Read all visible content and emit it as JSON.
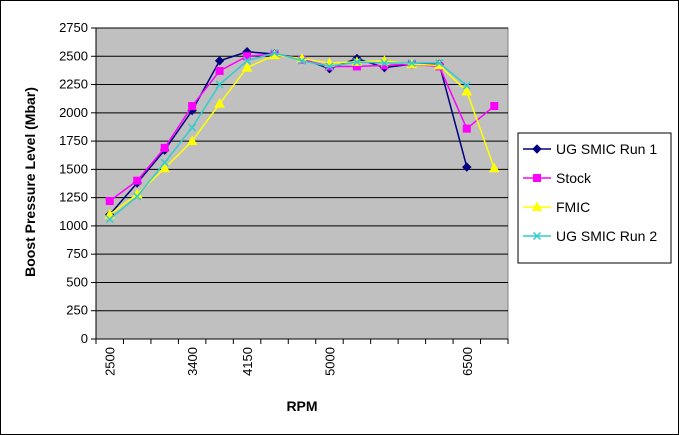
{
  "chart_data": {
    "type": "line",
    "title": "",
    "xlabel": "RPM",
    "ylabel": "Boost Pressure Level (Mbar)",
    "ylim": [
      0,
      2750
    ],
    "y_ticks": [
      "0",
      "250",
      "500",
      "750",
      "1000",
      "1250",
      "1500",
      "1750",
      "2000",
      "2250",
      "2500",
      "2750"
    ],
    "x_categories": [
      "2500",
      "",
      "",
      "3400",
      "",
      "4150",
      "",
      "",
      "5000",
      "",
      "",
      "",
      "",
      "6500",
      ""
    ],
    "x_tick_labels": [
      "2500",
      "3400",
      "4150",
      "5000",
      "6500"
    ],
    "grid": "horizontal",
    "legend_position": "right",
    "series": [
      {
        "name": "UG SMIC Run 1",
        "color": "#000080",
        "marker": "diamond",
        "values": [
          1100,
          1380,
          1670,
          2020,
          2460,
          2540,
          2520,
          2480,
          2390,
          2480,
          2400,
          2430,
          2430,
          1520,
          null
        ]
      },
      {
        "name": "Stock",
        "color": "#ff00ff",
        "marker": "square",
        "values": [
          1220,
          1400,
          1690,
          2060,
          2370,
          2500,
          2520,
          2470,
          2410,
          2410,
          2420,
          2430,
          2410,
          1860,
          2060
        ]
      },
      {
        "name": "FMIC",
        "color": "#ffff00",
        "marker": "triangle",
        "values": [
          1100,
          1280,
          1510,
          1750,
          2080,
          2400,
          2510,
          2480,
          2440,
          2450,
          2460,
          2430,
          2420,
          2190,
          1510
        ]
      },
      {
        "name": "UG SMIC Run 2",
        "color": "#33cccc",
        "marker": "x",
        "values": [
          1060,
          1260,
          1560,
          1870,
          2250,
          2460,
          2530,
          2460,
          2410,
          2450,
          2440,
          2440,
          2440,
          2240,
          null
        ]
      }
    ]
  }
}
